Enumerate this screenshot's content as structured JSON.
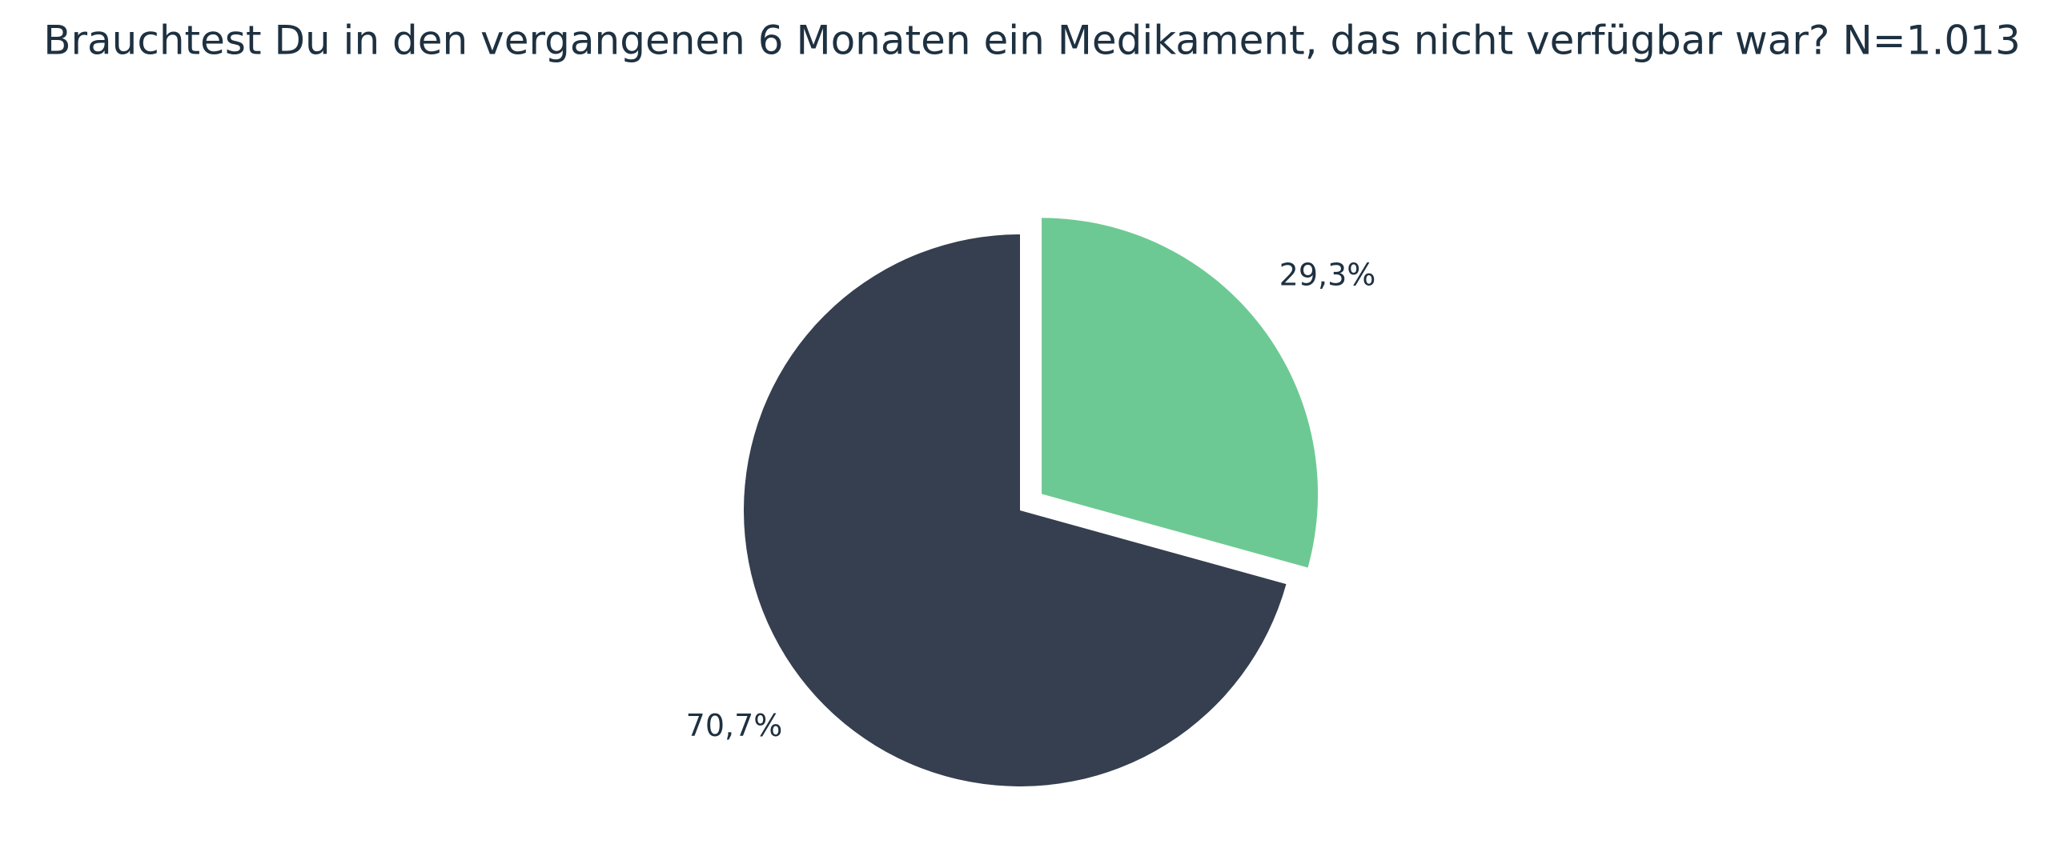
{
  "chart_data": {
    "type": "pie",
    "title": "Brauchtest Du in den vergangenen 6 Monaten ein Medikament, das nicht verfügbar war? N=1.013",
    "series": [
      {
        "values": [
          29.3,
          70.7
        ],
        "value_labels": [
          "29,3%",
          "70,7%"
        ],
        "colors": [
          "#6dc993",
          "#353f4f"
        ]
      }
    ],
    "exploded": [
      true,
      false
    ]
  }
}
